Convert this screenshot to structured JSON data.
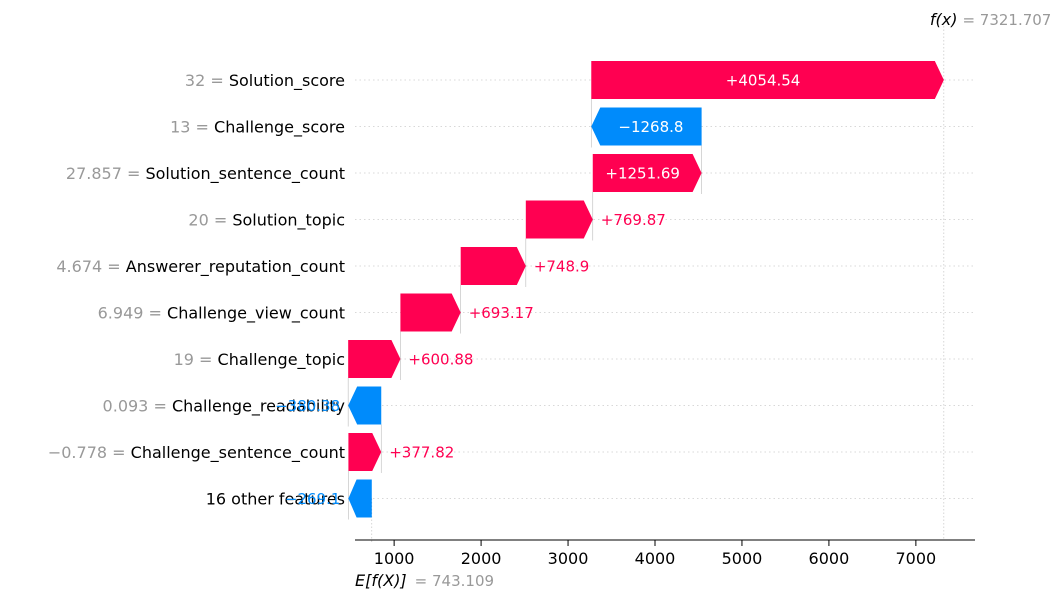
{
  "chart_data": {
    "type": "waterfall",
    "base_value": 743.109,
    "base_label": "E[f(X)]",
    "base_value_text": "= 743.109",
    "final_value": 7321.707,
    "final_label": "f(x)",
    "final_value_text": "= 7321.707",
    "xlim": [
      550,
      7680
    ],
    "xticks": [
      1000,
      2000,
      3000,
      4000,
      5000,
      6000,
      7000
    ],
    "xtick_labels": [
      "1000",
      "2000",
      "3000",
      "4000",
      "5000",
      "6000",
      "7000"
    ],
    "features": [
      {
        "value": "32 =",
        "name": "Solution_score",
        "contribution": 4054.54,
        "label": "+4054.54",
        "start": 3267.17,
        "end": 7321.71
      },
      {
        "value": "13 =",
        "name": "Challenge_score",
        "contribution": -1268.8,
        "label": "−1268.8",
        "start": 4535.97,
        "end": 3267.17
      },
      {
        "value": "27.857 =",
        "name": "Solution_sentence_count",
        "contribution": 1251.69,
        "label": "+1251.69",
        "start": 3284.28,
        "end": 4535.97
      },
      {
        "value": "20 =",
        "name": "Solution_topic",
        "contribution": 769.87,
        "label": "+769.87",
        "start": 2514.41,
        "end": 3284.28
      },
      {
        "value": "4.674 =",
        "name": "Answerer_reputation_count",
        "contribution": 748.9,
        "label": "+748.9",
        "start": 1765.51,
        "end": 2514.41
      },
      {
        "value": "6.949 =",
        "name": "Challenge_view_count",
        "contribution": 693.17,
        "label": "+693.17",
        "start": 1072.34,
        "end": 1765.51
      },
      {
        "value": "19 =",
        "name": "Challenge_topic",
        "contribution": 600.88,
        "label": "+600.88",
        "start": 471.46,
        "end": 1072.34
      },
      {
        "value": "0.093 =",
        "name": "Challenge_readability",
        "contribution": -380.38,
        "label": "−380.38",
        "start": 851.84,
        "end": 471.46
      },
      {
        "value": "−0.778 =",
        "name": "Challenge_sentence_count",
        "contribution": 377.82,
        "label": "+377.82",
        "start": 474.02,
        "end": 851.84
      },
      {
        "value": "",
        "name": "16 other features",
        "contribution": -269.1,
        "label": "−269.1",
        "start": 743.11,
        "end": 474.02
      }
    ],
    "colors": {
      "positive": "#ff0051",
      "negative": "#008bfb",
      "muted": "#999999",
      "text": "#000000"
    }
  }
}
